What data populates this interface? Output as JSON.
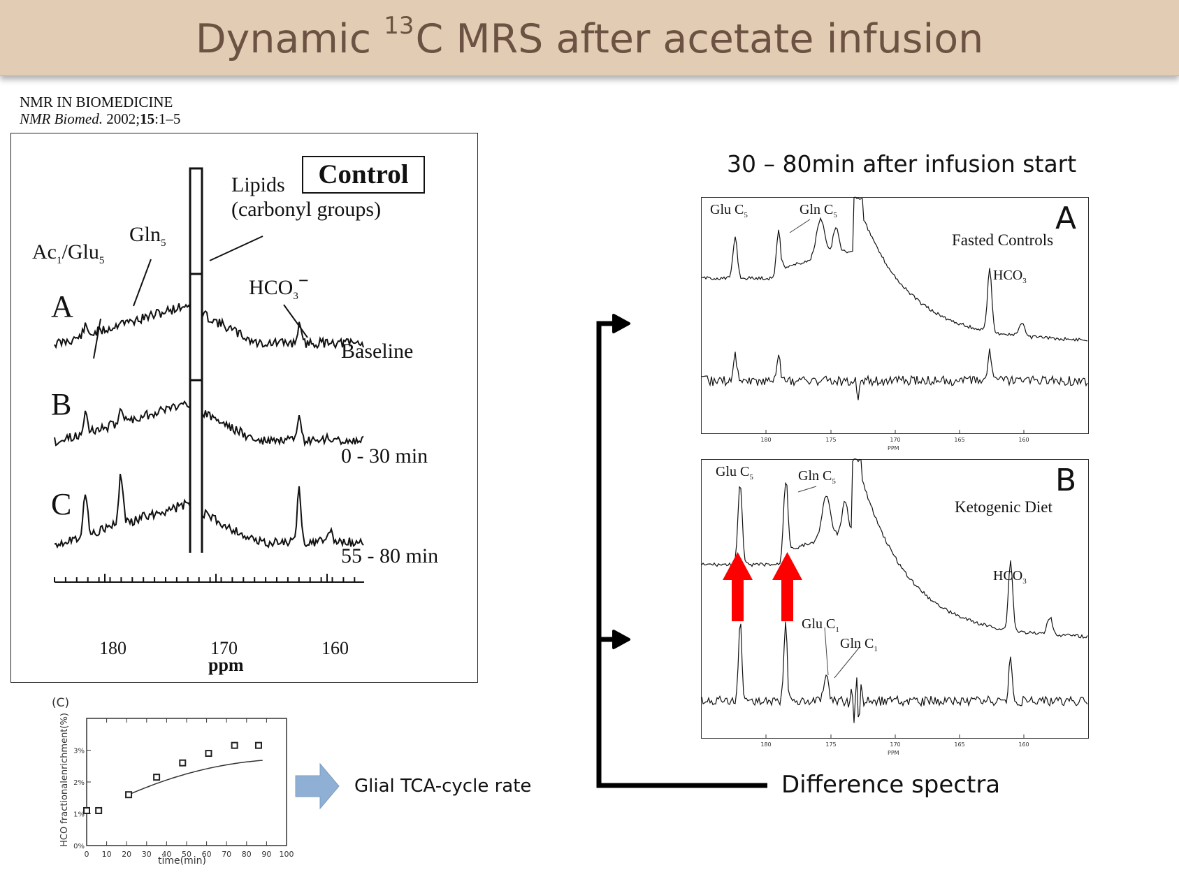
{
  "slide": {
    "title_pre": "Dynamic ",
    "title_sup": "13",
    "title_post": "C MRS after acetate infusion"
  },
  "citation": {
    "journal": "NMR IN BIOMEDICINE",
    "ref_journal": "NMR Biomed.",
    "ref_year": " 2002;",
    "ref_volume": "15",
    "ref_pages": ":1–5"
  },
  "left_panel": {
    "control_label": "Control",
    "lipids_label": "Lipids",
    "lipids_sub": "(carbonyl groups)",
    "gln_label": "Gln",
    "gln_sub": "5",
    "ac_label": "Ac",
    "ac_sub": "1",
    "glu_label": "/Glu",
    "glu_sub": "5",
    "hco_label": "HCO",
    "hco_sub": "3",
    "hco_sup": "−",
    "row_labels": [
      "A",
      "B",
      "C"
    ],
    "time_labels": [
      "Baseline",
      "0 - 30 min",
      "55 - 80 min"
    ],
    "x_ticks": [
      "180",
      "170",
      "160"
    ],
    "x_unit": "ppm"
  },
  "inset": {
    "panel_label": "(C)",
    "ylabel": "HCO fractionalenrichment(%)",
    "xlabel": "time(min)",
    "x_ticks": [
      "0",
      "10",
      "20",
      "30",
      "40",
      "50",
      "60",
      "70",
      "80",
      "90",
      "100"
    ],
    "y_ticks": [
      "0%",
      "1%",
      "2%",
      "3%"
    ],
    "arrow_label": "Glial TCA-cycle rate"
  },
  "chart_data": {
    "type": "scatter",
    "x": [
      0,
      6,
      21,
      35,
      48,
      61,
      74,
      86
    ],
    "y": [
      1.1,
      1.1,
      1.6,
      2.15,
      2.6,
      2.9,
      3.15,
      3.15
    ],
    "xlim": [
      0,
      100
    ],
    "ylim": [
      0,
      4
    ]
  },
  "right": {
    "heading": "30 – 80min after infusion start",
    "panel_a_letter": "A",
    "panel_a_title": "Fasted Controls",
    "panel_b_letter": "B",
    "panel_b_title": "Ketogenic Diet",
    "glu_c5": "Glu C",
    "gln_c5": "Gln C",
    "sub5": "5",
    "hco": "HCO",
    "sub3": "3",
    "glu_c1": "Glu C",
    "gln_c1": "Gln C",
    "sub1": "1",
    "x_ticks": [
      "180",
      "175",
      "170",
      "165",
      "160"
    ],
    "x_unit": "PPM",
    "difference_label": "Difference spectra"
  },
  "colors": {
    "banner_bg": "#e2cdb4",
    "banner_text": "#6b5242",
    "highlight_arrow": "#ff0000",
    "flow_arrow": "#8fb0d4"
  }
}
